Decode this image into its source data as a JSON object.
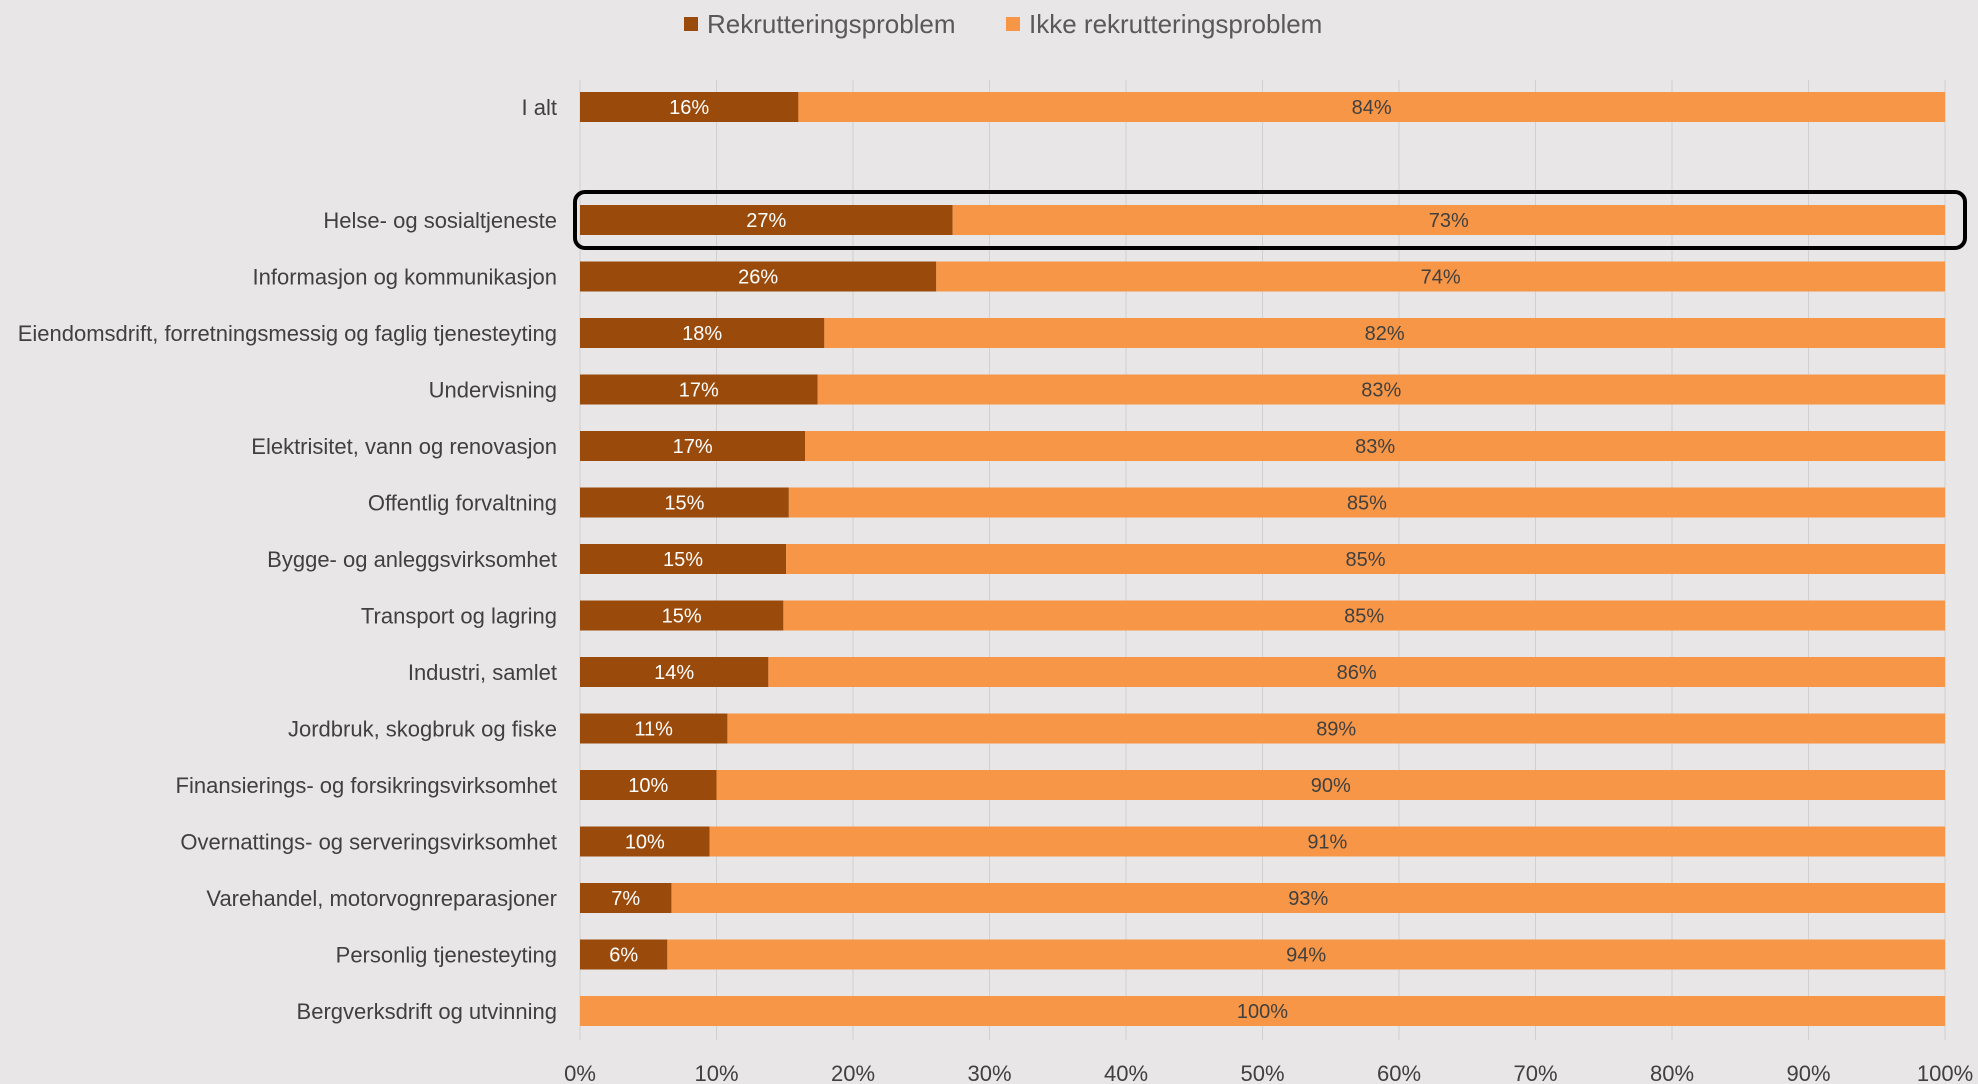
{
  "colors": {
    "background": "#e8e6e6",
    "recruit": "#9a4a0a",
    "non_recruit": "#f79646",
    "grid": "#d0d0d0",
    "highlight": "#000000"
  },
  "chart_data": {
    "type": "bar",
    "orientation": "horizontal",
    "stacked": true,
    "legend_position": "top",
    "grid": true,
    "xlim": [
      0,
      100
    ],
    "x_ticks": [
      "0%",
      "10%",
      "20%",
      "30%",
      "40%",
      "50%",
      "60%",
      "70%",
      "80%",
      "90%",
      "100%"
    ],
    "highlighted_category": "Helse- og sosialtjeneste",
    "categories": [
      "I alt",
      "Helse- og sosialtjeneste",
      "Informasjon og kommunikasjon",
      "Eiendomsdrift, forretningsmessig og faglig tjenesteyting",
      "Undervisning",
      "Elektrisitet, vann og renovasjon",
      "Offentlig forvaltning",
      "Bygge- og anleggsvirksomhet",
      "Transport og lagring",
      "Industri, samlet",
      "Jordbruk, skogbruk og fiske",
      "Finansierings- og forsikringsvirksomhet",
      "Overnattings- og serveringsvirksomhet",
      "Varehandel, motorvognreparasjoner",
      "Personlig tjenesteyting",
      "Bergverksdrift og utvinning"
    ],
    "series": [
      {
        "name": "Rekrutteringsproblem",
        "values": [
          16,
          27.3,
          26.1,
          17.9,
          17.4,
          16.5,
          15.3,
          15.1,
          14.9,
          13.8,
          10.8,
          10.0,
          9.5,
          6.7,
          6.4,
          0
        ],
        "labels": [
          "16%",
          "27%",
          "26%",
          "18%",
          "17%",
          "17%",
          "15%",
          "15%",
          "15%",
          "14%",
          "11%",
          "10%",
          "10%",
          "7%",
          "6%",
          ""
        ]
      },
      {
        "name": "Ikke rekrutteringsproblem",
        "values": [
          84,
          72.7,
          73.9,
          82.1,
          82.6,
          83.5,
          84.7,
          84.9,
          85.1,
          86.2,
          89.2,
          90.0,
          90.5,
          93.3,
          93.6,
          100
        ],
        "labels": [
          "84%",
          "73%",
          "74%",
          "82%",
          "83%",
          "83%",
          "85%",
          "85%",
          "85%",
          "86%",
          "89%",
          "90%",
          "91%",
          "93%",
          "94%",
          "100%"
        ]
      }
    ]
  }
}
